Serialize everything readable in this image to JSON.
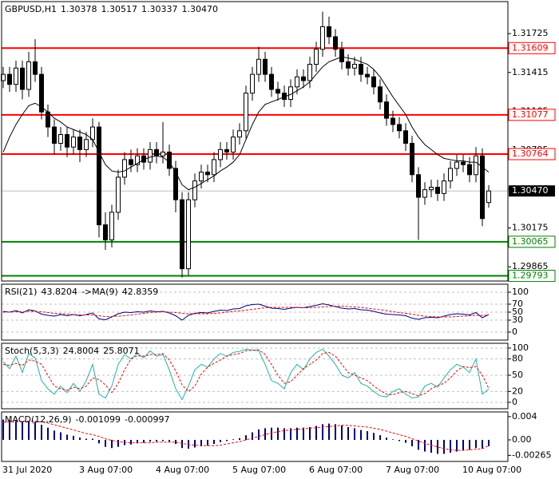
{
  "chart_data": [
    {
      "type": "candlestick",
      "title": "GBPUSD,H1",
      "ohlc": [
        1.30378,
        1.30517,
        1.30337,
        {
          "value": 1.3047,
          "label": "1.30470"
        }
      ],
      "categories": [
        "31 Jul 2020",
        null,
        null,
        null,
        null,
        null,
        null,
        null,
        null,
        null,
        null,
        null,
        "3 Aug 07:00",
        null,
        null,
        null,
        null,
        null,
        null,
        null,
        null,
        null,
        null,
        null,
        "4 Aug 07:00",
        null,
        null,
        null,
        null,
        null,
        null,
        null,
        null,
        null,
        null,
        null,
        "5 Aug 07:00",
        null,
        null,
        null,
        null,
        null,
        null,
        null,
        null,
        null,
        null,
        null,
        "6 Aug 07:00",
        null,
        null,
        null,
        null,
        null,
        null,
        null,
        null,
        null,
        null,
        null,
        "7 Aug 07:00",
        null,
        null,
        null,
        null,
        null,
        null,
        null,
        null,
        null,
        null,
        null,
        "10 Aug 07:00",
        null,
        null,
        null,
        null
      ],
      "open": [
        1.3135,
        1.314,
        1.3132,
        1.3145,
        1.3128,
        1.315,
        1.314,
        1.311,
        1.3098,
        1.3085,
        1.3092,
        1.3082,
        1.309,
        1.308,
        1.3088,
        1.3098,
        1.302,
        1.3008,
        1.303,
        1.3058,
        1.3072,
        1.3068,
        1.3075,
        1.307,
        1.308,
        1.3075,
        1.3078,
        1.3065,
        1.304,
        1.2985,
        1.304,
        1.3055,
        1.3062,
        1.306,
        1.3072,
        1.308,
        1.3078,
        1.309,
        1.3095,
        1.3125,
        1.314,
        1.3152,
        1.314,
        1.3128,
        1.3125,
        1.312,
        1.313,
        1.3138,
        1.3135,
        1.3148,
        1.316,
        1.3178,
        1.317,
        1.316,
        1.315,
        1.3145,
        1.3148,
        1.314,
        1.3138,
        1.313,
        1.3118,
        1.3105,
        1.31,
        1.3095,
        1.3085,
        1.306,
        1.3042,
        1.3048,
        1.305,
        1.3045,
        1.3055,
        1.3065,
        1.307,
        1.3068,
        1.306,
        1.3075,
        1.30378
      ],
      "high": [
        1.3146,
        1.3146,
        1.3151,
        1.3151,
        1.3158,
        1.3168,
        1.3146,
        1.3116,
        1.3104,
        1.3098,
        1.3098,
        1.3096,
        1.3096,
        1.3094,
        1.3105,
        1.3102,
        1.303,
        1.3036,
        1.3064,
        1.3078,
        1.308,
        1.3081,
        1.3081,
        1.3086,
        1.3086,
        1.3102,
        1.3084,
        1.3071,
        1.3046,
        1.3046,
        1.3061,
        1.3068,
        1.3068,
        1.3078,
        1.3086,
        1.3086,
        1.3096,
        1.3101,
        1.3131,
        1.3146,
        1.3162,
        1.3158,
        1.3146,
        1.3134,
        1.3131,
        1.3136,
        1.3144,
        1.3144,
        1.3154,
        1.3166,
        1.319,
        1.3186,
        1.3176,
        1.3166,
        1.3156,
        1.3154,
        1.3154,
        1.3146,
        1.3144,
        1.3136,
        1.3124,
        1.3111,
        1.3106,
        1.3101,
        1.3091,
        1.3066,
        1.3054,
        1.3056,
        1.3056,
        1.3061,
        1.3071,
        1.3076,
        1.3076,
        1.3074,
        1.3082,
        1.3081,
        1.30517
      ],
      "low": [
        1.3129,
        1.3126,
        1.3126,
        1.312,
        1.3122,
        1.3134,
        1.3104,
        1.309,
        1.3076,
        1.3079,
        1.3074,
        1.3076,
        1.307,
        1.3074,
        1.3082,
        1.301,
        1.3,
        1.3002,
        1.3024,
        1.3052,
        1.3062,
        1.3062,
        1.3064,
        1.3064,
        1.3069,
        1.3069,
        1.3059,
        1.303,
        1.2978,
        1.298,
        1.3034,
        1.3049,
        1.3054,
        1.3054,
        1.3066,
        1.3072,
        1.3072,
        1.3084,
        1.3089,
        1.3119,
        1.3134,
        1.3134,
        1.3122,
        1.3119,
        1.3114,
        1.3114,
        1.3124,
        1.3129,
        1.3129,
        1.3142,
        1.3154,
        1.3164,
        1.3154,
        1.3144,
        1.3139,
        1.3139,
        1.3134,
        1.3132,
        1.3124,
        1.3112,
        1.3099,
        1.3094,
        1.3089,
        1.3079,
        1.3054,
        1.3008,
        1.3036,
        1.3042,
        1.3039,
        1.3039,
        1.3049,
        1.3059,
        1.3062,
        1.3054,
        1.3054,
        1.3019,
        1.30337
      ],
      "close": [
        1.314,
        1.3132,
        1.3145,
        1.3128,
        1.315,
        1.314,
        1.311,
        1.3098,
        1.3085,
        1.3092,
        1.3082,
        1.309,
        1.308,
        1.3088,
        1.3098,
        1.302,
        1.3008,
        1.303,
        1.3058,
        1.3072,
        1.3068,
        1.3075,
        1.307,
        1.308,
        1.3075,
        1.3078,
        1.3065,
        1.304,
        1.2985,
        1.304,
        1.3055,
        1.3062,
        1.306,
        1.3072,
        1.308,
        1.3078,
        1.309,
        1.3095,
        1.3125,
        1.314,
        1.3152,
        1.314,
        1.3128,
        1.3125,
        1.312,
        1.313,
        1.3138,
        1.3135,
        1.3148,
        1.316,
        1.3178,
        1.317,
        1.316,
        1.315,
        1.3145,
        1.3148,
        1.314,
        1.3138,
        1.313,
        1.3118,
        1.3105,
        1.31,
        1.3095,
        1.3085,
        1.306,
        1.3042,
        1.3048,
        1.305,
        1.3045,
        1.3055,
        1.3065,
        1.307,
        1.3068,
        1.306,
        1.3075,
        1.3025,
        1.3047
      ],
      "ma": {
        "color": "#000000",
        "values": [
          1.3078,
          1.309,
          1.31,
          1.3108,
          1.3115,
          1.3117,
          1.3114,
          1.311,
          1.3105,
          1.3102,
          1.3098,
          1.3096,
          1.3094,
          1.3092,
          1.3088,
          1.3078,
          1.3068,
          1.3063,
          1.3062,
          1.3063,
          1.3066,
          1.3069,
          1.3072,
          1.3074,
          1.3075,
          1.3074,
          1.307,
          1.3062,
          1.3052,
          1.3048,
          1.305,
          1.3053,
          1.3056,
          1.3059,
          1.3063,
          1.3066,
          1.307,
          1.3076,
          1.3088,
          1.31,
          1.311,
          1.3116,
          1.3118,
          1.312,
          1.3122,
          1.3124,
          1.3127,
          1.313,
          1.3134,
          1.314,
          1.3146,
          1.315,
          1.3152,
          1.3154,
          1.3153,
          1.3152,
          1.315,
          1.3148,
          1.3144,
          1.3138,
          1.313,
          1.3122,
          1.3115,
          1.3108,
          1.3098,
          1.309,
          1.3084,
          1.308,
          1.3076,
          1.3073,
          1.3072,
          1.3071,
          1.3071,
          1.307,
          1.307,
          1.3066,
          1.3062
        ]
      },
      "up_color": "#ffffff",
      "down_color": "#000000",
      "levels": [
        {
          "value": 1.31609,
          "color": "#ff0000"
        },
        {
          "value": 1.31077,
          "color": "#ff0000"
        },
        {
          "value": 1.30764,
          "color": "#ff0000"
        },
        {
          "value": 1.30065,
          "color": "#008000"
        },
        {
          "value": 1.29793,
          "color": "#008000"
        }
      ],
      "last": {
        "value": 1.3047,
        "label": "1.30470"
      },
      "ylim": [
        1.29752,
        1.3198
      ],
      "yticks": [
        1.31725,
        1.31415,
        1.31105,
        1.30795,
        1.30485,
        1.30175,
        1.29865
      ]
    },
    {
      "type": "line",
      "series": [
        {
          "name": "RSI(21)",
          "color": "#000080",
          "values": [
            52,
            50,
            54,
            48,
            56,
            53,
            45,
            42,
            40,
            44,
            41,
            44,
            41,
            44,
            48,
            33,
            31,
            38,
            46,
            50,
            49,
            51,
            50,
            53,
            51,
            52,
            48,
            41,
            30,
            42,
            47,
            49,
            48,
            52,
            55,
            54,
            58,
            59,
            66,
            69,
            70,
            65,
            60,
            59,
            57,
            60,
            62,
            61,
            64,
            67,
            71,
            68,
            64,
            60,
            58,
            59,
            56,
            55,
            52,
            48,
            45,
            44,
            43,
            41,
            35,
            32,
            36,
            37,
            36,
            40,
            44,
            46,
            45,
            43,
            49,
            36,
            43.8204
          ]
        },
        {
          "name": "->MA(9)",
          "color": "#ff0000",
          "values": [
            50,
            50,
            51,
            51,
            52,
            52,
            51,
            49,
            47,
            46,
            45,
            44,
            43,
            43,
            43,
            41,
            39,
            39,
            40,
            41,
            43,
            45,
            47,
            49,
            50,
            51,
            50,
            49,
            47,
            46,
            46,
            46,
            46,
            47,
            48,
            50,
            52,
            53,
            55,
            57,
            59,
            61,
            62,
            62,
            62,
            62,
            62,
            61,
            61,
            62,
            63,
            64,
            65,
            65,
            64,
            63,
            62,
            60,
            58,
            56,
            54,
            51,
            49,
            47,
            45,
            42,
            40,
            39,
            38,
            38,
            38,
            39,
            40,
            41,
            42,
            42,
            42.8359
          ]
        }
      ],
      "ylim": [
        -20,
        120
      ],
      "yticks": [
        100,
        70,
        50,
        30,
        0
      ],
      "grid": true
    },
    {
      "type": "line",
      "series": [
        {
          "name": "Stoch(5,3,3)",
          "color": "#20b2aa",
          "values": [
            75,
            62,
            85,
            55,
            90,
            82,
            40,
            25,
            15,
            30,
            18,
            35,
            20,
            40,
            70,
            15,
            8,
            30,
            70,
            88,
            80,
            90,
            82,
            95,
            85,
            88,
            60,
            25,
            5,
            30,
            60,
            70,
            65,
            80,
            90,
            85,
            92,
            94,
            98,
            96,
            95,
            70,
            40,
            35,
            25,
            55,
            70,
            60,
            80,
            92,
            98,
            85,
            70,
            50,
            45,
            55,
            35,
            30,
            20,
            12,
            10,
            20,
            25,
            15,
            8,
            10,
            30,
            35,
            28,
            45,
            60,
            70,
            65,
            55,
            80,
            15,
            24.8004
          ]
        },
        {
          "color": "#ff0000",
          "values": [
            70,
            68,
            72,
            68,
            78,
            76,
            70,
            50,
            30,
            25,
            22,
            28,
            25,
            30,
            45,
            42,
            32,
            18,
            35,
            60,
            80,
            86,
            85,
            88,
            88,
            90,
            78,
            58,
            32,
            20,
            30,
            52,
            65,
            72,
            78,
            85,
            88,
            90,
            95,
            96,
            97,
            88,
            70,
            50,
            35,
            38,
            50,
            62,
            70,
            78,
            90,
            92,
            85,
            70,
            55,
            50,
            45,
            40,
            30,
            22,
            15,
            14,
            18,
            20,
            16,
            12,
            16,
            25,
            31,
            35,
            45,
            58,
            66,
            64,
            66,
            50,
            25.8071
          ]
        }
      ],
      "ylim": [
        -11.8,
        108.8
      ],
      "yticks": [
        100,
        80,
        50,
        20,
        0
      ],
      "grid": true
    },
    {
      "type": "macd",
      "series": [
        {
          "name": "MACD(12,26,9)",
          "color": "#000080",
          "values": [
            0.0035,
            0.0034,
            0.0034,
            0.0032,
            0.0032,
            0.0031,
            0.0026,
            0.0021,
            0.0016,
            0.0013,
            0.0009,
            0.0007,
            0.0004,
            0.0002,
            0.0002,
            -0.0006,
            -0.0012,
            -0.0014,
            -0.0012,
            -0.0009,
            -0.0008,
            -0.0006,
            -0.0005,
            -0.0003,
            -0.0003,
            -0.0002,
            -0.0003,
            -0.0007,
            -0.0014,
            -0.0015,
            -0.0013,
            -0.0011,
            -0.001,
            -0.0007,
            -0.0004,
            -0.0002,
            0.0001,
            0.0003,
            0.0008,
            0.0013,
            0.0018,
            0.002,
            0.0021,
            0.0021,
            0.002,
            0.002,
            0.0021,
            0.0021,
            0.0022,
            0.0024,
            0.0027,
            0.0028,
            0.0027,
            0.0025,
            0.0022,
            0.002,
            0.0017,
            0.0015,
            0.0012,
            0.0008,
            0.0004,
            0.0001,
            -0.0002,
            -0.0005,
            -0.0011,
            -0.0017,
            -0.002,
            -0.0022,
            -0.0024,
            -0.0024,
            -0.0022,
            -0.002,
            -0.0018,
            -0.0017,
            -0.0014,
            -0.0015,
            -0.001099
          ]
        },
        {
          "color": "#ff0000",
          "values": [
            0.003,
            0.0031,
            0.0032,
            0.0032,
            0.0032,
            0.0032,
            0.0031,
            0.0029,
            0.0026,
            0.0023,
            0.002,
            0.0017,
            0.0014,
            0.0011,
            0.0009,
            0.0006,
            0.0002,
            -0.0001,
            -0.0003,
            -0.0004,
            -0.0005,
            -0.0005,
            -0.0005,
            -0.0005,
            -0.0004,
            -0.0004,
            -0.0004,
            -0.0004,
            -0.0006,
            -0.0008,
            -0.0009,
            -0.001,
            -0.001,
            -0.001,
            -0.0009,
            -0.0007,
            -0.0005,
            -0.0003,
            0.0,
            0.0003,
            0.0006,
            0.0009,
            0.0012,
            0.0014,
            0.0016,
            0.0017,
            0.0018,
            0.0019,
            0.002,
            0.0021,
            0.0022,
            0.0023,
            0.0024,
            0.0025,
            0.0025,
            0.0024,
            0.0023,
            0.0022,
            0.002,
            0.0018,
            0.0015,
            0.0012,
            0.0009,
            0.0006,
            0.0002,
            -0.0002,
            -0.0006,
            -0.0009,
            -0.0012,
            -0.0015,
            -0.0017,
            -0.0018,
            -0.0018,
            -0.0017,
            -0.0016,
            -0.0015,
            -0.000997
          ]
        }
      ],
      "ylim": [
        -0.0037,
        0.0048
      ],
      "yticks": [
        0.004,
        {
          "value": 0,
          "label": "0.00"
        },
        -0.00265
      ]
    }
  ]
}
